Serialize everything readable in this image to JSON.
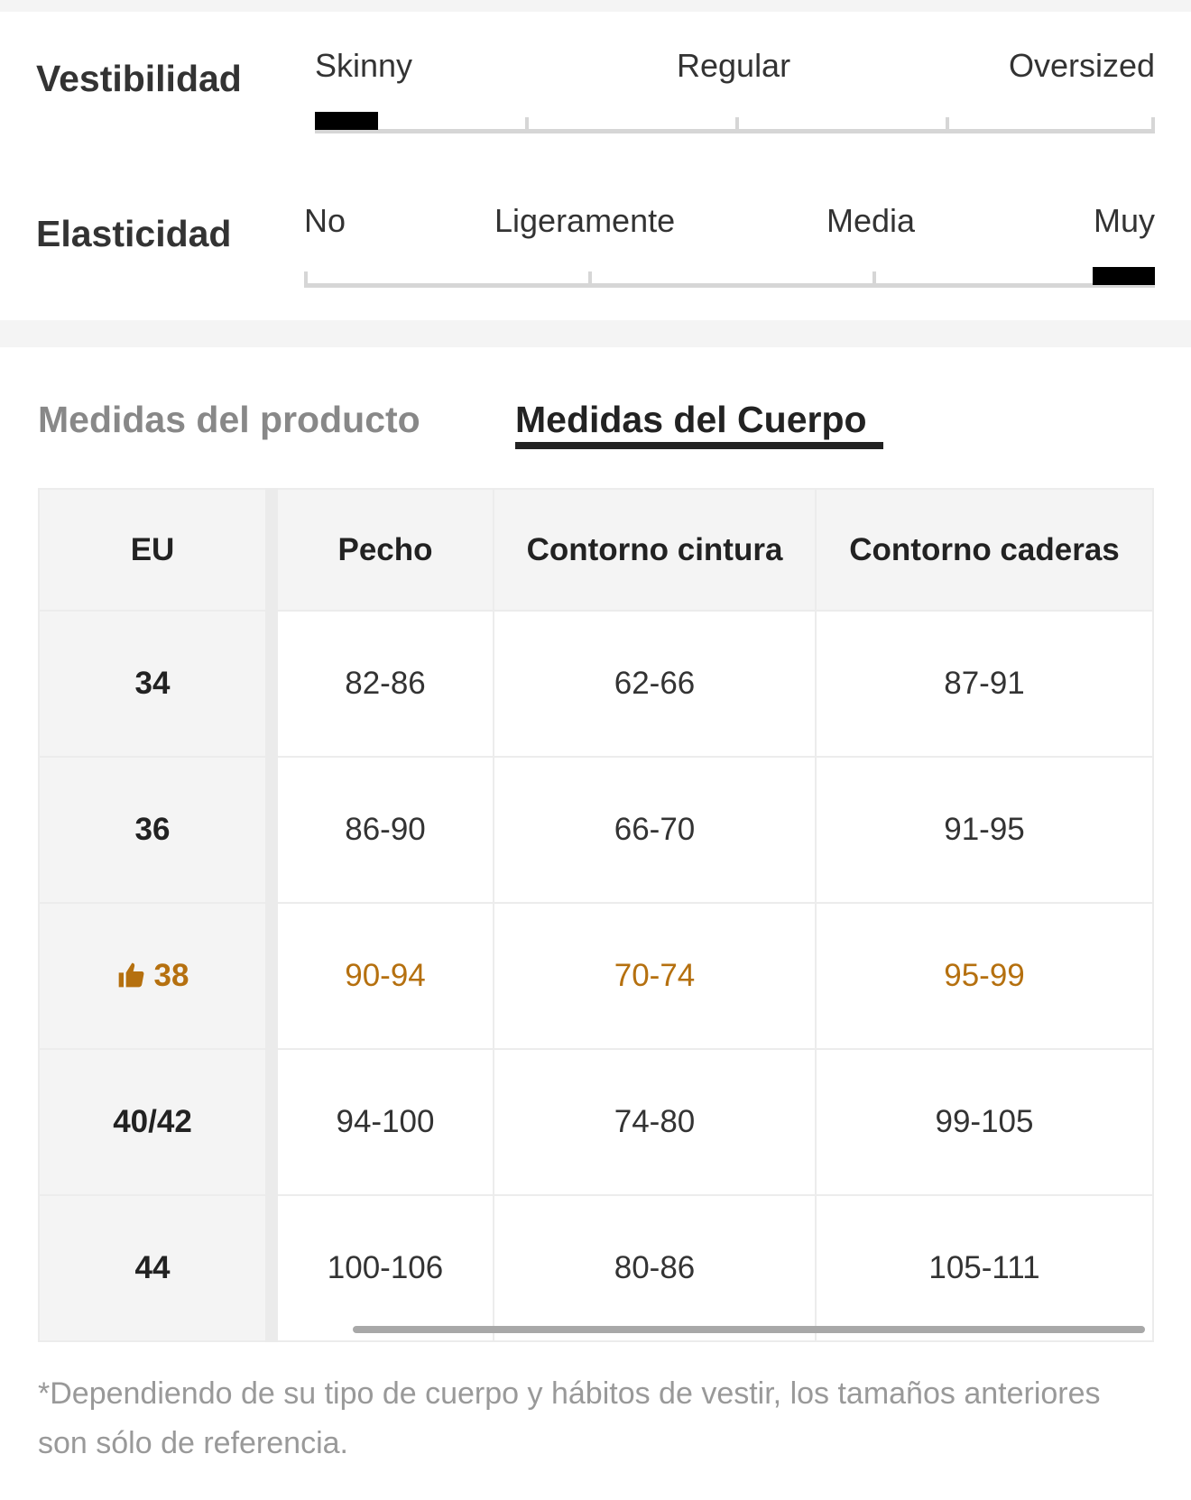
{
  "fit": {
    "label": "Vestibilidad",
    "options": [
      "Skinny",
      "Regular",
      "Oversized"
    ]
  },
  "elasticity": {
    "label": "Elasticidad",
    "options": [
      "No",
      "Ligeramente",
      "Media",
      "Muy"
    ]
  },
  "tabs": [
    "Medidas del producto",
    "Medidas del Cuerpo"
  ],
  "table": {
    "header": [
      "EU",
      "Pecho",
      "Contorno cintura",
      "Contorno caderas"
    ],
    "rows": [
      [
        "34",
        "82-86",
        "62-66",
        "87-91"
      ],
      [
        "36",
        "86-90",
        "66-70",
        "91-95"
      ],
      [
        "38",
        "90-94",
        "70-74",
        "95-99"
      ],
      [
        "40/42",
        "94-100",
        "74-80",
        "99-105"
      ],
      [
        "44",
        "100-106",
        "80-86",
        "105-111"
      ]
    ]
  },
  "note": "*Dependiendo de su tipo de cuerpo y hábitos de vestir, los tamaños anteriores son sólo de referencia."
}
